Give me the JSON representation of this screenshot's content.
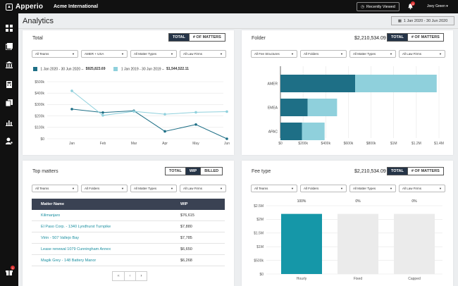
{
  "app": {
    "brand": "Apperio",
    "org": "Acme International",
    "recently_viewed": "Recently Viewed",
    "notification_count": "4",
    "user": "Joey Green",
    "sidebar_badge": "1"
  },
  "page": {
    "title": "Analytics",
    "date_range": "1 Jan 2020 - 30 Jun 2020"
  },
  "total_card": {
    "title": "Total",
    "toggle": [
      "TOTAL",
      "# OF MATTERS"
    ],
    "active": "TOTAL",
    "filters": [
      "All Teams",
      "AMER + USA",
      "All Matter Types",
      "All Law Firms"
    ],
    "legend": [
      {
        "range": "1 Jan 2020 - 30 Jun 2020",
        "amount": "$925,823.69",
        "color": "#1e6f86"
      },
      {
        "range": "1 Jan 2019 - 30 Jun 2019",
        "amount": "$1,544,522.11",
        "color": "#8fd0dc"
      }
    ]
  },
  "folder_card": {
    "title": "Folder",
    "amount": "$2,210,534.09",
    "toggle": [
      "TOTAL",
      "# OF MATTERS"
    ],
    "active": "TOTAL",
    "filters": [
      "All Fee Structures",
      "All Folders",
      "All Matter Types",
      "All Law Firms"
    ]
  },
  "top_matters_card": {
    "title": "Top matters",
    "toggle": [
      "TOTAL",
      "WIP",
      "BILLED"
    ],
    "active": "WIP",
    "filters": [
      "All Teams",
      "All Folders",
      "All Matter Types",
      "All Law Firms"
    ],
    "columns": [
      "Matter Name",
      "WIP"
    ],
    "rows": [
      {
        "name": "Kilimanjaro",
        "wip": "$76,615"
      },
      {
        "name": "El Paso Corp. - 1340 Lyndhurst Turnpike",
        "wip": "$7,880"
      },
      {
        "name": "Vtrin - 507 Vallejo Bay",
        "wip": "$7,785"
      },
      {
        "name": "Lease renewal 1079 Cunningham Annex",
        "wip": "$6,650"
      },
      {
        "name": "Magik Grey - 148 Battery Manor",
        "wip": "$6,268"
      }
    ],
    "pager": [
      "«",
      "‹",
      "›"
    ]
  },
  "fee_type_card": {
    "title": "Fee type",
    "amount": "$2,210,534.09",
    "toggle": [
      "TOTAL",
      "# OF MATTERS"
    ],
    "active": "TOTAL",
    "filters": [
      "All Teams",
      "All Folders",
      "All Matter Types",
      "All Law Firms"
    ]
  },
  "chart_data": [
    {
      "type": "line",
      "categories": [
        "Jan",
        "Feb",
        "Mar",
        "Apr",
        "May",
        "Jun"
      ],
      "series": [
        {
          "name": "1 Jan 2020 - 30 Jun 2020",
          "values": [
            260,
            230,
            245,
            65,
            125,
            0
          ],
          "color": "#1e6f86"
        },
        {
          "name": "1 Jan 2019 - 30 Jun 2019",
          "values": [
            420,
            205,
            240,
            215,
            232,
            238
          ],
          "color": "#8fd0dc"
        }
      ],
      "yticks": [
        "$0",
        "$100k",
        "$200k",
        "$300k",
        "$400k",
        "$500k"
      ],
      "ylim": [
        0,
        500
      ]
    },
    {
      "type": "bar",
      "orientation": "horizontal",
      "categories": [
        "AMER",
        "EMEA",
        "APAC"
      ],
      "series": [
        {
          "name": "current",
          "values": [
            660,
            240,
            190
          ],
          "color": "#1e6f86"
        },
        {
          "name": "previous",
          "values": [
            720,
            260,
            200
          ],
          "color": "#8fd0dc"
        }
      ],
      "xticks": [
        "$0",
        "$200k",
        "$400k",
        "$600k",
        "$800k",
        "$1M",
        "$1.2M",
        "$1.4M"
      ],
      "xlim": [
        0,
        1400
      ]
    },
    {
      "type": "bar",
      "categories": [
        "Hourly",
        "Fixed",
        "Capped"
      ],
      "values": [
        2.2,
        0,
        0
      ],
      "percent_labels": [
        "100%",
        "0%",
        "0%"
      ],
      "yticks": [
        "$0",
        "$500k",
        "$1M",
        "$1.5M",
        "$2M",
        "$2.5M"
      ],
      "ylim": [
        0,
        2.5
      ],
      "bar_color": "#1597a8",
      "empty_color": "#ebebeb"
    }
  ]
}
